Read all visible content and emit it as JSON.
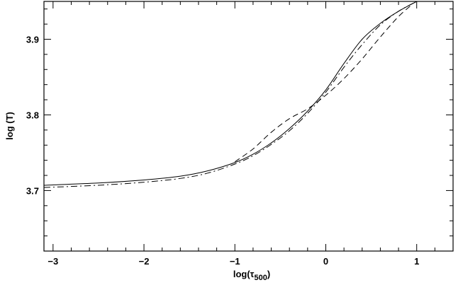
{
  "chart_data": {
    "type": "line",
    "title": "",
    "xlabel": "log(τ",
    "xlabel_sub": "500",
    "xlabel_close": ")",
    "ylabel": "log  (T)",
    "xlim": [
      -3.1,
      1.4
    ],
    "ylim": [
      3.62,
      3.95
    ],
    "grid": false,
    "legend": "none",
    "x_ticks": [
      {
        "value": -3,
        "label": "−3"
      },
      {
        "value": -2,
        "label": "−2"
      },
      {
        "value": -1,
        "label": "−1"
      },
      {
        "value": 0,
        "label": "0"
      },
      {
        "value": 1,
        "label": "1"
      }
    ],
    "y_ticks": [
      {
        "value": 3.7,
        "label": "3.7"
      },
      {
        "value": 3.8,
        "label": "3.8"
      },
      {
        "value": 3.9,
        "label": "3.9"
      }
    ],
    "series": [
      {
        "style": "solid",
        "x": [
          -3.1,
          -2.5,
          -2.0,
          -1.6,
          -1.3,
          -1.0,
          -0.8,
          -0.6,
          -0.4,
          -0.2,
          0.0,
          0.2,
          0.4,
          0.6,
          0.8,
          1.0
        ],
        "y": [
          3.707,
          3.71,
          3.714,
          3.719,
          3.726,
          3.737,
          3.748,
          3.763,
          3.782,
          3.805,
          3.833,
          3.868,
          3.9,
          3.921,
          3.937,
          3.95
        ]
      },
      {
        "style": "dashdot",
        "x": [
          -3.1,
          -2.5,
          -2.0,
          -1.6,
          -1.3,
          -1.0,
          -0.8,
          -0.6,
          -0.4,
          -0.2,
          0.0,
          0.2,
          0.4,
          0.6,
          0.8,
          1.0
        ],
        "y": [
          3.704,
          3.707,
          3.711,
          3.716,
          3.723,
          3.735,
          3.746,
          3.761,
          3.779,
          3.802,
          3.83,
          3.863,
          3.893,
          3.919,
          3.937,
          3.95
        ]
      },
      {
        "style": "dashed",
        "x": [
          -1.0,
          -0.8,
          -0.6,
          -0.4,
          -0.2,
          0.0,
          0.2,
          0.4,
          0.6,
          0.8,
          0.95
        ],
        "y": [
          3.738,
          3.755,
          3.777,
          3.795,
          3.808,
          3.826,
          3.848,
          3.874,
          3.903,
          3.93,
          3.946
        ]
      }
    ]
  }
}
